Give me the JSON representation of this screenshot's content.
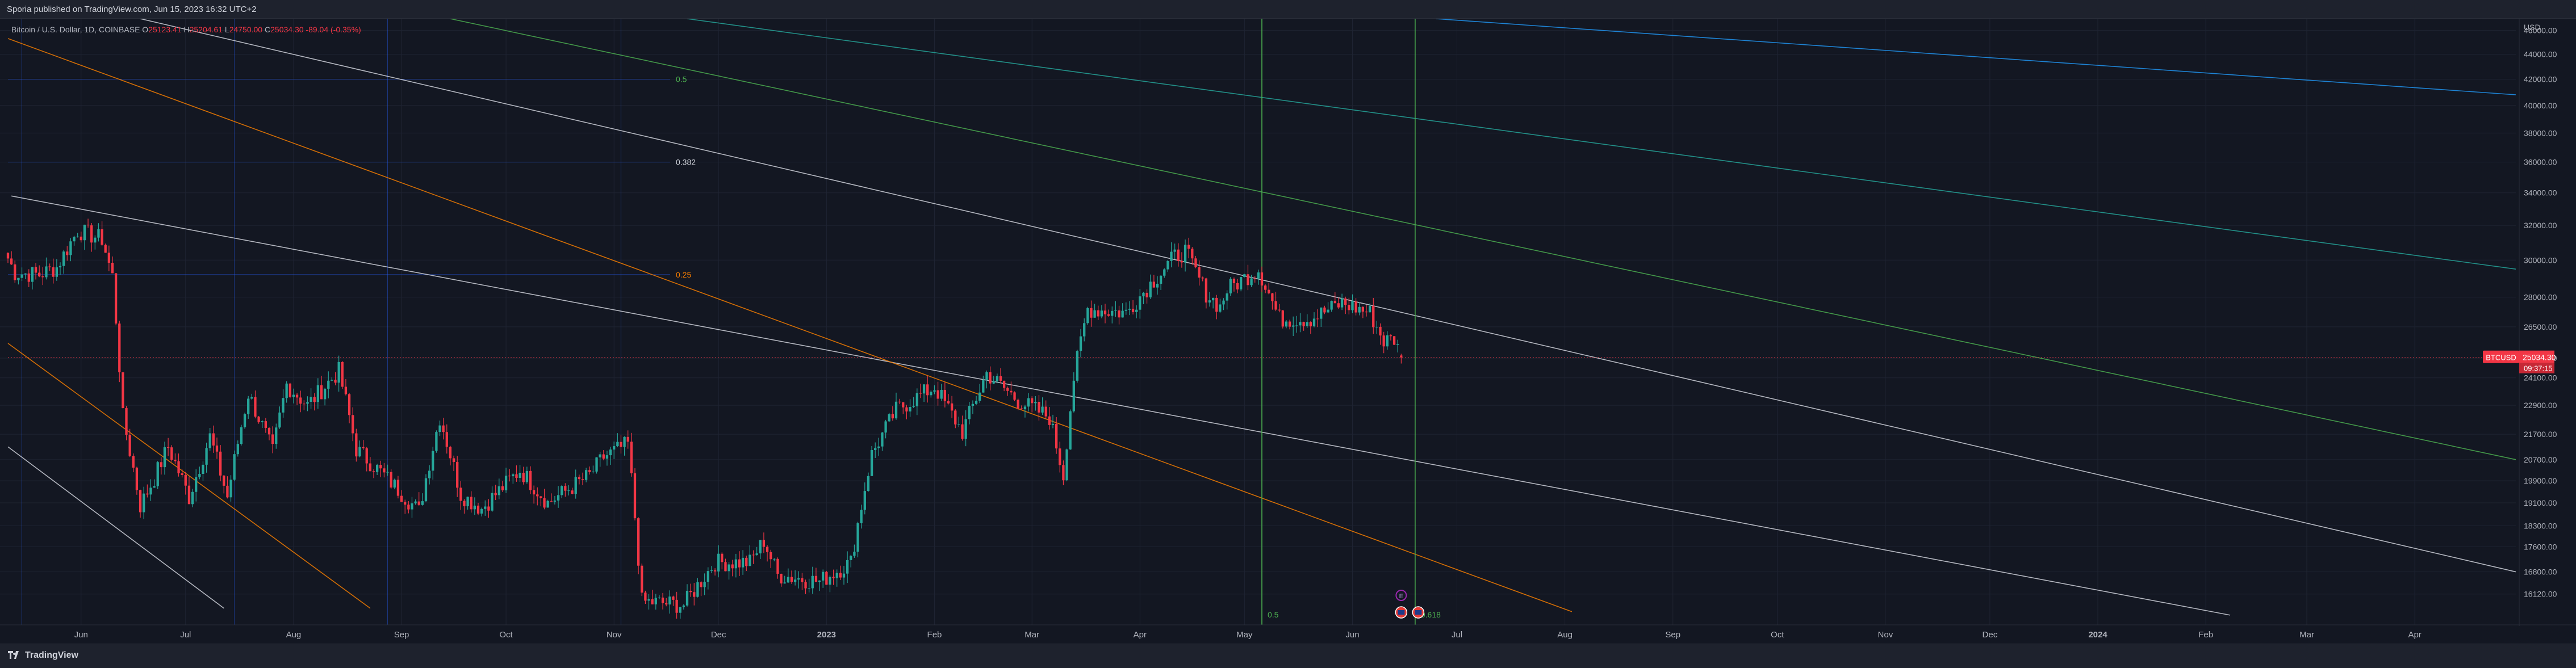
{
  "header": {
    "published_text": "Sporia published on TradingView.com, Jun 15, 2023 16:32 UTC+2"
  },
  "footer": {
    "brand": "TradingView"
  },
  "legend": {
    "symbol": "Bitcoin / U.S. Dollar, 1D, COINBASE",
    "o_label": "O",
    "o_value": "25123.41",
    "h_label": "H",
    "h_value": "25204.61",
    "l_label": "L",
    "l_value": "24750.00",
    "c_label": "C",
    "c_value": "25034.30",
    "change": "-89.04 (-0.35%)"
  },
  "price_badge": {
    "ticker": "BTCUSD",
    "price": "25034.30",
    "countdown": "09:37:15"
  },
  "colors": {
    "background": "#131722",
    "up": "#26a69a",
    "down": "#f23645",
    "grid": "#1f2433",
    "fib_blue": "#2962ff",
    "orange": "#f57c00",
    "green": "#4caf50",
    "teal": "#26a69a",
    "white_line": "#d1d4dc",
    "blue_line": "#2196f3"
  },
  "annotations": {
    "fib_0_5": "0.5",
    "fib_0_382": "0.382",
    "fib_0_25": "0.25",
    "vline_0_5": "0.5",
    "vline_0_618": "0.618",
    "event_marker": "E"
  },
  "chart_data": {
    "type": "candlestick",
    "title": "Bitcoin / U.S. Dollar, 1D, COINBASE",
    "y_unit": "USD",
    "ylim": [
      15400,
      47000
    ],
    "scale": "log",
    "y_ticks": [
      "46000.00",
      "44000.00",
      "42000.00",
      "40000.00",
      "38000.00",
      "36000.00",
      "34000.00",
      "32000.00",
      "30000.00",
      "28000.00",
      "26500.00",
      "25000.00",
      "24100.00",
      "22900.00",
      "21700.00",
      "20700.00",
      "19900.00",
      "19100.00",
      "18300.00",
      "17600.00",
      "16800.00",
      "16120.00"
    ],
    "x_range": [
      "2022-05-11",
      "2024-04-30"
    ],
    "x_ticks": [
      {
        "label": "Jun",
        "date": "2022-06-01"
      },
      {
        "label": "Jul",
        "date": "2022-07-01"
      },
      {
        "label": "Aug",
        "date": "2022-08-01"
      },
      {
        "label": "Sep",
        "date": "2022-09-01"
      },
      {
        "label": "Oct",
        "date": "2022-10-01"
      },
      {
        "label": "Nov",
        "date": "2022-11-01"
      },
      {
        "label": "Dec",
        "date": "2022-12-01"
      },
      {
        "label": "2023",
        "date": "2023-01-01"
      },
      {
        "label": "Feb",
        "date": "2023-02-01"
      },
      {
        "label": "Mar",
        "date": "2023-03-01"
      },
      {
        "label": "Apr",
        "date": "2023-04-01"
      },
      {
        "label": "May",
        "date": "2023-05-01"
      },
      {
        "label": "Jun",
        "date": "2023-06-01"
      },
      {
        "label": "Jul",
        "date": "2023-07-01"
      },
      {
        "label": "Aug",
        "date": "2023-08-01"
      },
      {
        "label": "Sep",
        "date": "2023-09-01"
      },
      {
        "label": "Oct",
        "date": "2023-10-01"
      },
      {
        "label": "Nov",
        "date": "2023-11-01"
      },
      {
        "label": "Dec",
        "date": "2023-12-01"
      },
      {
        "label": "2024",
        "date": "2024-01-01"
      },
      {
        "label": "Feb",
        "date": "2024-02-01"
      },
      {
        "label": "Mar",
        "date": "2024-03-01"
      },
      {
        "label": "Apr",
        "date": "2024-04-01"
      }
    ],
    "anchors": [
      {
        "date": "2022-05-11",
        "close": 30100
      },
      {
        "date": "2022-05-13",
        "close": 29300
      },
      {
        "date": "2022-05-20",
        "close": 29200
      },
      {
        "date": "2022-05-25",
        "close": 29600
      },
      {
        "date": "2022-05-31",
        "close": 31700
      },
      {
        "date": "2022-06-07",
        "close": 31200
      },
      {
        "date": "2022-06-10",
        "close": 29100
      },
      {
        "date": "2022-06-13",
        "close": 22400
      },
      {
        "date": "2022-06-18",
        "close": 19000
      },
      {
        "date": "2022-06-22",
        "close": 20000
      },
      {
        "date": "2022-06-26",
        "close": 21200
      },
      {
        "date": "2022-07-02",
        "close": 19300
      },
      {
        "date": "2022-07-08",
        "close": 21600
      },
      {
        "date": "2022-07-13",
        "close": 19300
      },
      {
        "date": "2022-07-19",
        "close": 23400
      },
      {
        "date": "2022-07-26",
        "close": 21000
      },
      {
        "date": "2022-07-30",
        "close": 23800
      },
      {
        "date": "2022-08-05",
        "close": 22900
      },
      {
        "date": "2022-08-14",
        "close": 24400
      },
      {
        "date": "2022-08-19",
        "close": 21100
      },
      {
        "date": "2022-08-27",
        "close": 20100
      },
      {
        "date": "2022-09-06",
        "close": 18800
      },
      {
        "date": "2022-09-12",
        "close": 22400
      },
      {
        "date": "2022-09-18",
        "close": 19400
      },
      {
        "date": "2022-09-24",
        "close": 18900
      },
      {
        "date": "2022-10-05",
        "close": 20300
      },
      {
        "date": "2022-10-13",
        "close": 19100
      },
      {
        "date": "2022-10-25",
        "close": 20100
      },
      {
        "date": "2022-10-29",
        "close": 20800
      },
      {
        "date": "2022-11-05",
        "close": 21300
      },
      {
        "date": "2022-11-09",
        "close": 15900
      },
      {
        "date": "2022-11-21",
        "close": 15800
      },
      {
        "date": "2022-11-30",
        "close": 17100
      },
      {
        "date": "2022-12-10",
        "close": 17100
      },
      {
        "date": "2022-12-14",
        "close": 17800
      },
      {
        "date": "2022-12-18",
        "close": 16700
      },
      {
        "date": "2022-12-30",
        "close": 16500
      },
      {
        "date": "2023-01-08",
        "close": 17100
      },
      {
        "date": "2023-01-14",
        "close": 20900
      },
      {
        "date": "2023-01-21",
        "close": 22700
      },
      {
        "date": "2023-02-01",
        "close": 23700
      },
      {
        "date": "2023-02-09",
        "close": 21800
      },
      {
        "date": "2023-02-16",
        "close": 24300
      },
      {
        "date": "2023-02-25",
        "close": 23100
      },
      {
        "date": "2023-03-06",
        "close": 22400
      },
      {
        "date": "2023-03-10",
        "close": 20100
      },
      {
        "date": "2023-03-13",
        "close": 24100
      },
      {
        "date": "2023-03-17",
        "close": 27400
      },
      {
        "date": "2023-03-28",
        "close": 27200
      },
      {
        "date": "2023-04-11",
        "close": 30200
      },
      {
        "date": "2023-04-14",
        "close": 30500
      },
      {
        "date": "2023-04-20",
        "close": 28200
      },
      {
        "date": "2023-04-24",
        "close": 27500
      },
      {
        "date": "2023-04-26",
        "close": 28400
      },
      {
        "date": "2023-05-05",
        "close": 29500
      },
      {
        "date": "2023-05-11",
        "close": 26900
      },
      {
        "date": "2023-05-20",
        "close": 26900
      },
      {
        "date": "2023-05-29",
        "close": 27700
      },
      {
        "date": "2023-06-06",
        "close": 27200
      },
      {
        "date": "2023-06-10",
        "close": 25800
      },
      {
        "date": "2023-06-13",
        "close": 25900
      },
      {
        "date": "2023-06-15",
        "close": 25034.3
      }
    ],
    "last_candle": {
      "date": "2023-06-15",
      "open": 25123.41,
      "high": 25204.61,
      "low": 24750.0,
      "close": 25034.3
    },
    "trendlines": [
      {
        "name": "white-channel-top",
        "color": "#d1d4dc",
        "from": {
          "date": "2022-05-12",
          "price": 33800
        },
        "to": {
          "date": "2024-02-08",
          "price": 15500
        }
      },
      {
        "name": "white-channel-mid",
        "color": "#d1d4dc",
        "from": {
          "date": "2022-06-18",
          "price": 47000
        },
        "to": {
          "date": "2024-04-30",
          "price": 16800
        }
      },
      {
        "name": "white-channel-low",
        "color": "#d1d4dc",
        "from": {
          "date": "2022-05-11",
          "price": 21200
        },
        "to": {
          "date": "2022-07-12",
          "price": 15700
        }
      },
      {
        "name": "orange-top",
        "color": "#f57c00",
        "from": {
          "date": "2022-05-11",
          "price": 45300
        },
        "to": {
          "date": "2023-08-03",
          "price": 15600
        }
      },
      {
        "name": "orange-low",
        "color": "#f57c00",
        "from": {
          "date": "2022-05-11",
          "price": 25700
        },
        "to": {
          "date": "2022-08-23",
          "price": 15700
        }
      },
      {
        "name": "green-fan",
        "color": "#4caf50",
        "from": {
          "date": "2022-09-15",
          "price": 47000
        },
        "to": {
          "date": "2024-04-30",
          "price": 20700
        }
      },
      {
        "name": "teal-fan",
        "color": "#26a69a",
        "from": {
          "date": "2022-11-22",
          "price": 47000
        },
        "to": {
          "date": "2024-04-30",
          "price": 29500
        }
      },
      {
        "name": "blue-fan",
        "color": "#2196f3",
        "from": {
          "date": "2023-06-25",
          "price": 47000
        },
        "to": {
          "date": "2024-04-30",
          "price": 40800
        }
      }
    ],
    "fib_levels": [
      {
        "label": "0.5",
        "price": 42000,
        "color": "#4caf50"
      },
      {
        "label": "0.382",
        "price": 36000,
        "color": "#d1d4dc"
      },
      {
        "label": "0.25",
        "price": 29200,
        "color": "#f57c00"
      }
    ],
    "vertical_lines": [
      {
        "label": "0.5",
        "date": "2023-05-06",
        "color": "#4caf50"
      },
      {
        "label": "0.618",
        "date": "2023-06-19",
        "color": "#4caf50"
      }
    ],
    "grid": true
  }
}
